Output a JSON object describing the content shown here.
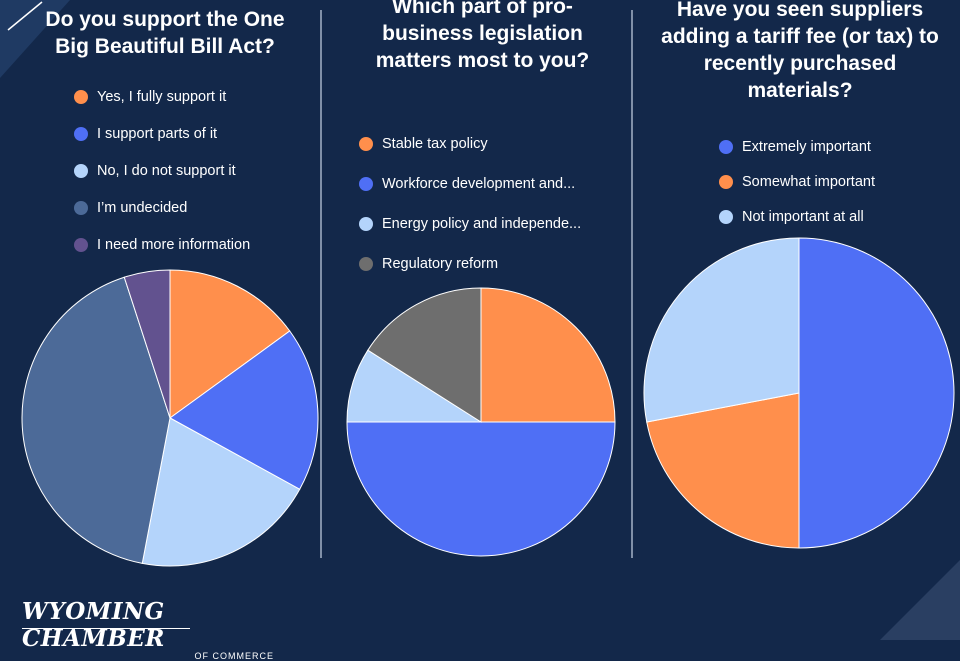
{
  "colors": {
    "background": "#13284a",
    "orange": "#ff8f4c",
    "blue": "#4f6ff5",
    "light_blue": "#b4d4fb",
    "slate": "#4c6a98",
    "purple": "#62528f",
    "gray": "#6e6e6e"
  },
  "branding": {
    "logo_main": "WYOMING CHAMBER",
    "logo_sub": "OF COMMERCE"
  },
  "chart_data": [
    {
      "type": "pie",
      "title": "Do you support the One Big Beautiful Bill Act?",
      "legend_position": "top",
      "slices": [
        {
          "label": "Yes, I fully support it",
          "value": 15,
          "color": "#ff8f4c"
        },
        {
          "label": "I support parts of it",
          "value": 18,
          "color": "#4f6ff5"
        },
        {
          "label": "No, I do not support it",
          "value": 20,
          "color": "#b4d4fb"
        },
        {
          "label": "I’m undecided",
          "value": 42,
          "color": "#4c6a98"
        },
        {
          "label": "I need more information",
          "value": 5,
          "color": "#62528f"
        }
      ]
    },
    {
      "type": "pie",
      "title": "Which part of pro-business legislation matters most to you?",
      "legend_position": "top",
      "slices": [
        {
          "label": "Stable tax policy",
          "value": 25,
          "color": "#ff8f4c"
        },
        {
          "label": "Workforce development and...",
          "value": 50,
          "color": "#4f6ff5"
        },
        {
          "label": "Energy policy and independe...",
          "value": 9,
          "color": "#b4d4fb"
        },
        {
          "label": "Regulatory reform",
          "value": 16,
          "color": "#6e6e6e"
        }
      ]
    },
    {
      "type": "pie",
      "title": "Have you seen suppliers adding a tariff fee (or tax) to recently purchased materials?",
      "legend_position": "top",
      "slices": [
        {
          "label": "Extremely important",
          "value": 50,
          "color": "#4f6ff5"
        },
        {
          "label": "Somewhat important",
          "value": 22,
          "color": "#ff8f4c"
        },
        {
          "label": "Not important at all",
          "value": 28,
          "color": "#b4d4fb"
        }
      ]
    }
  ]
}
